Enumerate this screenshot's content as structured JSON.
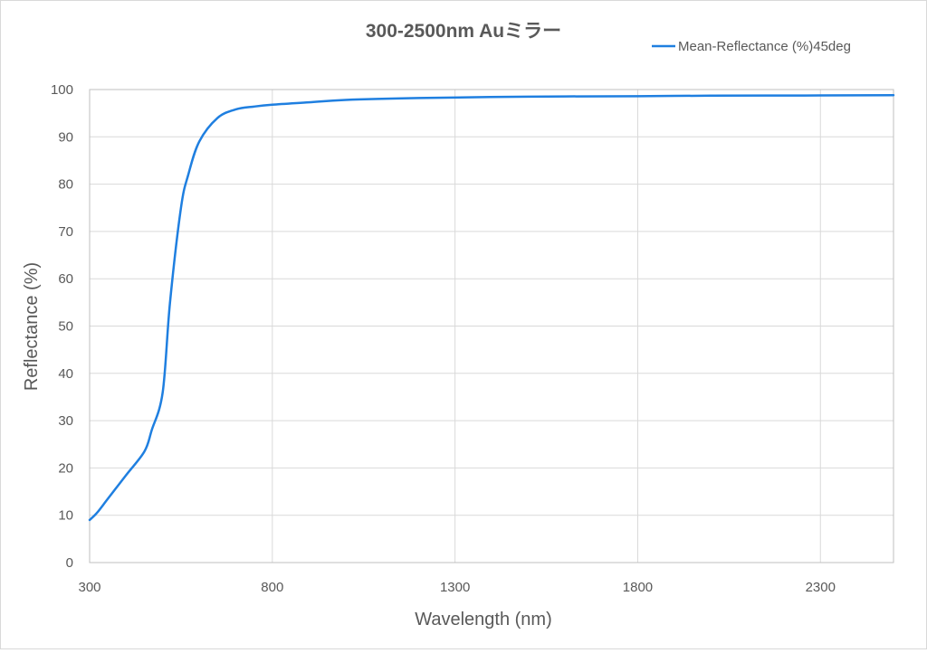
{
  "chart_data": {
    "type": "line",
    "title": "300-2500nm Auミラー",
    "xlabel": "Wavelength (nm)",
    "ylabel": "Reflectance (%)",
    "xlim": [
      300,
      2500
    ],
    "ylim": [
      0,
      100
    ],
    "xticks": [
      300,
      800,
      1300,
      1800,
      2300
    ],
    "yticks": [
      0,
      10,
      20,
      30,
      40,
      50,
      60,
      70,
      80,
      90,
      100
    ],
    "grid": true,
    "legend_position": "top-right",
    "series": [
      {
        "name": "Mean-Reflectance (%)45deg",
        "color": "#1f7fe0",
        "x": [
          300,
          320,
          350,
          400,
          450,
          470,
          500,
          520,
          550,
          570,
          600,
          650,
          700,
          750,
          800,
          900,
          1000,
          1200,
          1500,
          1800,
          2000,
          2300,
          2500
        ],
        "y": [
          9,
          10.5,
          13.5,
          18.5,
          23.5,
          28,
          36,
          55,
          75,
          82,
          89,
          94,
          95.8,
          96.4,
          96.8,
          97.3,
          97.8,
          98.2,
          98.5,
          98.6,
          98.7,
          98.75,
          98.8
        ]
      }
    ]
  }
}
